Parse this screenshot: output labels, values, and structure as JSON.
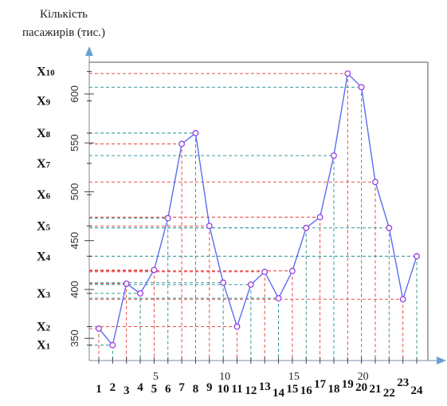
{
  "chart_data": {
    "type": "line",
    "ylabel": [
      "Кількість",
      "пасажирів (тис.)"
    ],
    "x": [
      "1",
      "2",
      "3",
      "4",
      "5",
      "6",
      "7",
      "8",
      "9",
      "10",
      "11",
      "12",
      "13",
      "14",
      "15",
      "16",
      "17",
      "18",
      "19",
      "20",
      "21",
      "22",
      "23",
      "24"
    ],
    "x_tick_labels": [
      "5",
      "10",
      "15",
      "20"
    ],
    "y_tick_labels": [
      "350",
      "400",
      "450",
      "500",
      "550",
      "600"
    ],
    "ylim": [
      333,
      635
    ],
    "series": [
      {
        "values": [
          360,
          343,
          406,
          396,
          420,
          473,
          549,
          560,
          465,
          407,
          362,
          405,
          418,
          391,
          419,
          463,
          474,
          537,
          621,
          607,
          510,
          463,
          390,
          434
        ]
      }
    ],
    "levels": [
      {
        "label": "X",
        "sub": "1",
        "value": 343
      },
      {
        "label": "X",
        "sub": "2",
        "value": 362
      },
      {
        "label": "X",
        "sub": "3",
        "value": 396
      },
      {
        "label": "X",
        "sub": "4",
        "value": 434
      },
      {
        "label": "X",
        "sub": "5",
        "value": 465
      },
      {
        "label": "X",
        "sub": "6",
        "value": 497
      },
      {
        "label": "X",
        "sub": "7",
        "value": 529
      },
      {
        "label": "X",
        "sub": "8",
        "value": 560
      },
      {
        "label": "X",
        "sub": "9",
        "value": 593
      },
      {
        "label": "X",
        "sub": "10",
        "value": 623
      }
    ],
    "colors": {
      "line": "#5b6cf0",
      "marker_edge": "#9a3fe0",
      "red_guides": "#e53935",
      "green_guides": "#1e8c8c",
      "axis": "#7a8aa0",
      "arrow": "#6aa0d6"
    },
    "grid": false
  }
}
